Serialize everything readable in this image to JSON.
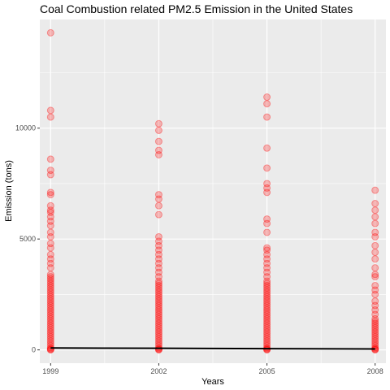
{
  "chart_data": {
    "type": "scatter",
    "title": "Coal Combustion related PM2.5 Emission in the United States",
    "xlabel": "Years",
    "ylabel": "Emission (tons)",
    "x_ticks": [
      1999,
      2002,
      2005,
      2008
    ],
    "y_ticks": [
      0,
      5000,
      10000
    ],
    "xlim": [
      1998.7,
      2008.3
    ],
    "ylim": [
      -600,
      14900
    ],
    "grid": true,
    "legend": "none",
    "colors": {
      "panel": "#ebebeb",
      "grid": "#ffffff",
      "points": "#ff0000",
      "line": "#000000"
    },
    "series": [
      {
        "x": 1999,
        "y": [
          14300,
          10800,
          10500,
          8600,
          8100,
          7900,
          7100,
          7000,
          6500,
          6300,
          6200,
          6000,
          5800,
          5600,
          5300,
          5100,
          4800,
          4600,
          4300,
          4100,
          3900,
          3700,
          3400,
          3300,
          3200,
          3100,
          3000,
          2900,
          2800,
          2700,
          2600,
          2500,
          2400,
          2300,
          2200,
          2100,
          2000,
          1900,
          1800,
          1700,
          1600,
          1500,
          1400,
          1300,
          1200,
          1100,
          1000,
          900,
          800,
          700,
          600,
          500,
          400,
          300,
          200,
          100,
          50,
          20,
          0
        ]
      },
      {
        "x": 2002,
        "y": [
          10200,
          9900,
          9400,
          9000,
          8800,
          7000,
          6800,
          6500,
          6100,
          5100,
          4900,
          4700,
          4500,
          4300,
          4100,
          3900,
          3700,
          3500,
          3300,
          3100,
          3000,
          2900,
          2800,
          2700,
          2600,
          2500,
          2400,
          2300,
          2200,
          2100,
          2000,
          1900,
          1800,
          1700,
          1600,
          1500,
          1400,
          1300,
          1200,
          1100,
          1000,
          900,
          800,
          700,
          600,
          500,
          400,
          300,
          200,
          100,
          50,
          20,
          0
        ]
      },
      {
        "x": 2005,
        "y": [
          11400,
          11100,
          10500,
          9100,
          8200,
          7500,
          7300,
          7100,
          5900,
          5700,
          5300,
          4600,
          4500,
          4300,
          4100,
          3900,
          3700,
          3500,
          3300,
          3100,
          3000,
          2900,
          2800,
          2700,
          2600,
          2500,
          2400,
          2300,
          2200,
          2100,
          2000,
          1900,
          1800,
          1700,
          1600,
          1500,
          1400,
          1300,
          1200,
          1100,
          1000,
          900,
          800,
          700,
          600,
          500,
          400,
          300,
          200,
          100,
          50,
          20,
          0
        ]
      },
      {
        "x": 2008,
        "y": [
          7200,
          6600,
          6300,
          6000,
          5700,
          5300,
          5100,
          4700,
          4400,
          4100,
          3700,
          3400,
          3300,
          2900,
          2700,
          2500,
          2200,
          2000,
          1800,
          1600,
          1400,
          1300,
          1200,
          1100,
          1000,
          900,
          800,
          700,
          600,
          500,
          400,
          300,
          200,
          100,
          50,
          20,
          0
        ]
      }
    ],
    "mean_line": {
      "x": [
        1999,
        2002,
        2005,
        2008
      ],
      "y": [
        85,
        75,
        55,
        40
      ]
    }
  }
}
